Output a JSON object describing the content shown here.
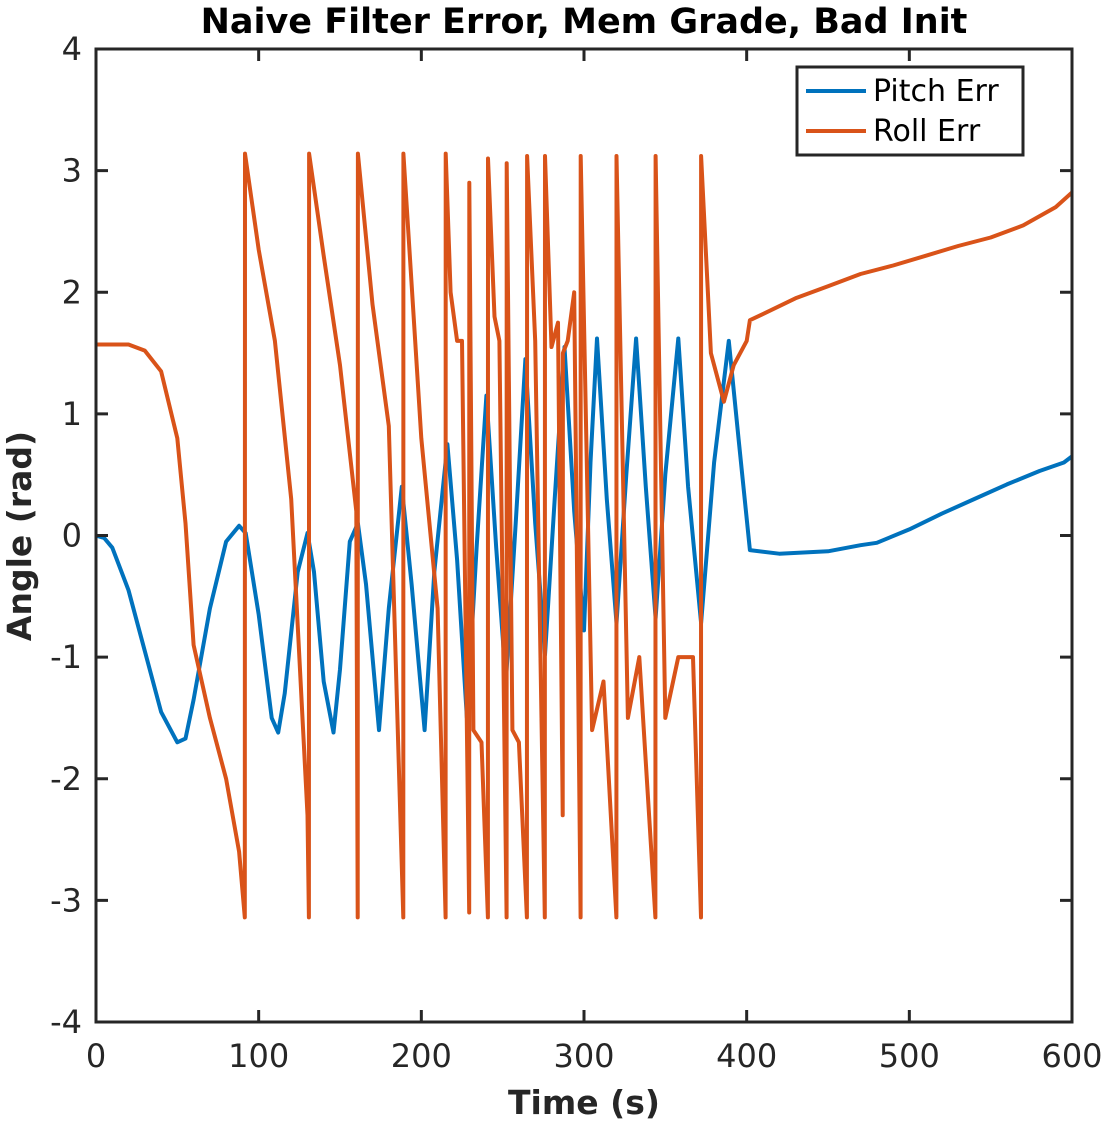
{
  "colors": {
    "pitch": "#0072BD",
    "roll": "#D95319",
    "axis": "#262626",
    "background": "#ffffff"
  },
  "chart_data": {
    "type": "line",
    "title": "Naive Filter Error, Mem Grade, Bad Init",
    "xlabel": "Time (s)",
    "ylabel": "Angle (rad)",
    "xlim": [
      0,
      600
    ],
    "ylim": [
      -4,
      4
    ],
    "xticks": [
      0,
      100,
      200,
      300,
      400,
      500,
      600
    ],
    "yticks": [
      -4,
      -3,
      -2,
      -1,
      0,
      1,
      2,
      3,
      4
    ],
    "xtick_labels": [
      "0",
      "100",
      "200",
      "300",
      "400",
      "500",
      "600"
    ],
    "ytick_labels": [
      "-4",
      "-3",
      "-2",
      "-1",
      "0",
      "1",
      "2",
      "3",
      "4"
    ],
    "grid": false,
    "box": true,
    "legend_position": "top-right",
    "series": [
      {
        "name": "Pitch Err",
        "color": "#0072BD",
        "x": [
          0,
          5,
          10,
          20,
          30,
          40,
          50,
          55,
          60,
          70,
          80,
          88,
          92,
          100,
          108,
          112,
          116,
          124,
          130,
          134,
          140,
          146,
          150,
          156,
          161,
          166,
          174,
          180,
          188,
          194,
          202,
          208,
          216,
          222,
          228,
          234,
          240,
          246,
          252,
          258,
          264,
          270,
          276,
          282,
          288,
          294,
          300,
          304,
          308,
          314,
          320,
          326,
          332,
          338,
          344,
          350,
          358,
          364,
          372,
          380,
          389,
          395,
          402,
          420,
          450,
          470,
          480,
          500,
          520,
          540,
          560,
          580,
          595,
          600
        ],
        "y": [
          0.0,
          -0.02,
          -0.1,
          -0.45,
          -0.95,
          -1.45,
          -1.7,
          -1.67,
          -1.35,
          -0.6,
          -0.05,
          0.08,
          0.02,
          -0.65,
          -1.5,
          -1.62,
          -1.3,
          -0.3,
          0.02,
          -0.3,
          -1.2,
          -1.62,
          -1.1,
          -0.05,
          0.1,
          -0.4,
          -1.6,
          -0.6,
          0.4,
          -0.4,
          -1.6,
          -0.3,
          0.75,
          -0.2,
          -1.5,
          -0.1,
          1.15,
          -0.1,
          -1.2,
          0.1,
          1.45,
          0.1,
          -0.98,
          0.3,
          1.55,
          0.2,
          -0.78,
          0.6,
          1.62,
          0.3,
          -0.72,
          0.5,
          1.62,
          0.4,
          -0.68,
          0.5,
          1.62,
          0.4,
          -0.72,
          0.6,
          1.6,
          0.8,
          -0.12,
          -0.15,
          -0.13,
          -0.08,
          -0.06,
          0.05,
          0.18,
          0.3,
          0.42,
          0.53,
          0.6,
          0.65
        ]
      },
      {
        "name": "Roll Err",
        "color": "#D95319",
        "x": [
          0,
          10,
          20,
          30,
          40,
          50,
          55,
          60,
          70,
          80,
          88,
          91.5,
          91.6,
          100,
          110,
          120,
          130,
          130.9,
          131,
          140,
          150,
          160,
          160.9,
          161,
          170,
          180,
          188.9,
          189,
          200,
          210,
          214.9,
          215,
          218,
          222,
          225,
          229.4,
          229.5,
          232,
          237,
          240.9,
          241,
          245,
          248,
          252.4,
          252.5,
          256,
          260,
          264.9,
          265,
          270,
          275.9,
          276,
          280,
          284,
          286.9,
          287,
          290,
          294,
          297.9,
          298,
          305,
          312,
          319.9,
          320,
          327,
          334,
          343.9,
          344,
          350,
          358,
          367,
          371.9,
          372,
          378,
          386,
          392,
          400,
          402,
          410,
          430,
          450,
          470,
          490,
          510,
          530,
          550,
          570,
          590,
          600
        ],
        "y": [
          1.57,
          1.57,
          1.57,
          1.52,
          1.35,
          0.8,
          0.1,
          -0.9,
          -1.5,
          -2.0,
          -2.6,
          -3.14,
          3.14,
          2.35,
          1.6,
          0.3,
          -2.3,
          -3.14,
          3.14,
          2.3,
          1.4,
          0.2,
          -3.14,
          3.14,
          1.9,
          0.9,
          -3.14,
          3.14,
          0.8,
          -0.6,
          -3.14,
          3.14,
          2.0,
          1.6,
          1.6,
          -3.1,
          2.9,
          -1.6,
          -1.7,
          -3.14,
          3.1,
          1.8,
          1.6,
          -3.14,
          3.06,
          -1.6,
          -1.7,
          -3.14,
          3.12,
          1.6,
          -3.14,
          3.12,
          1.55,
          1.75,
          -2.3,
          1.5,
          1.6,
          2.0,
          -3.14,
          3.12,
          -1.6,
          -1.2,
          -3.14,
          3.12,
          -1.5,
          -1.0,
          -3.14,
          3.12,
          -1.5,
          -1.0,
          -1.0,
          -3.14,
          3.12,
          1.5,
          1.1,
          1.4,
          1.6,
          1.77,
          1.82,
          1.95,
          2.05,
          2.15,
          2.22,
          2.3,
          2.38,
          2.45,
          2.55,
          2.7,
          2.82
        ]
      }
    ]
  }
}
